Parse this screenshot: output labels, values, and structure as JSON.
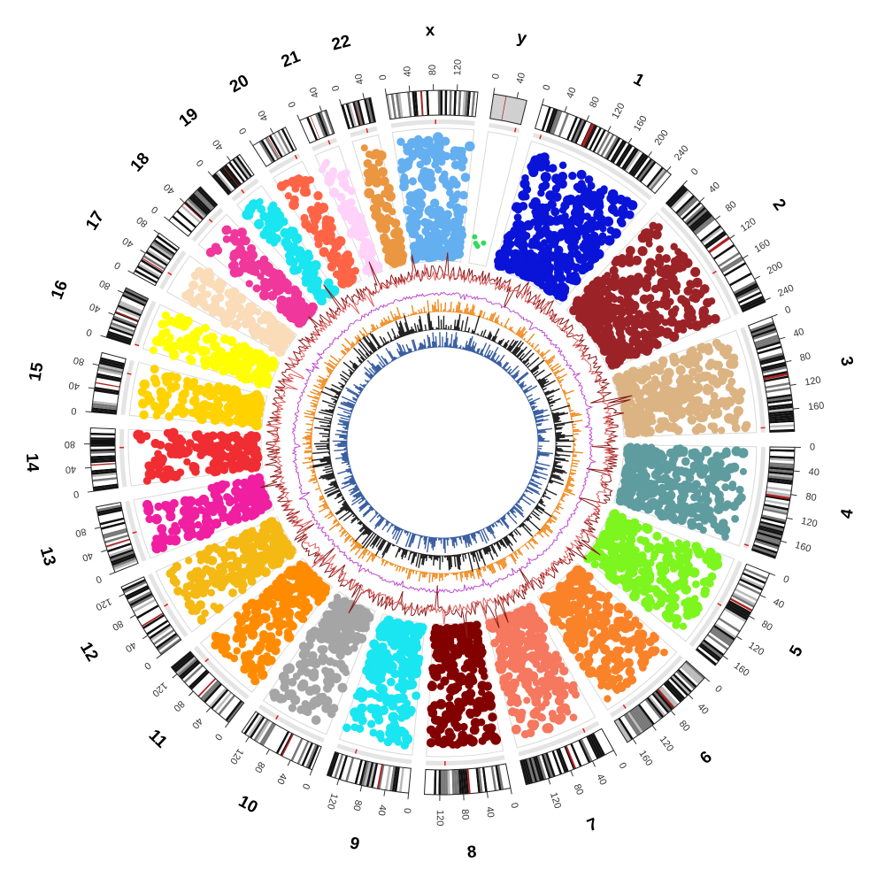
{
  "chart_data": {
    "type": "circos",
    "tracks": [
      "karyotype ideogram",
      "scatter (manhattan-style points)",
      "line track (dark red)",
      "line track (magenta)",
      "histogram (orange)",
      "histogram (black)",
      "histogram (blue)"
    ],
    "chromosomes": [
      {
        "name": "1",
        "length": 249,
        "ticks": [
          0,
          40,
          80,
          120,
          160,
          200,
          240
        ],
        "color": "#0a14d8"
      },
      {
        "name": "2",
        "length": 243,
        "ticks": [
          0,
          40,
          80,
          120,
          160,
          200,
          240
        ],
        "color": "#9b2328"
      },
      {
        "name": "3",
        "length": 198,
        "ticks": [
          0,
          40,
          80,
          120,
          160
        ],
        "color": "#dcb483"
      },
      {
        "name": "4",
        "length": 191,
        "ticks": [
          0,
          40,
          80,
          120,
          160
        ],
        "color": "#5f9c9f"
      },
      {
        "name": "5",
        "length": 181,
        "ticks": [
          0,
          40,
          80,
          120,
          160
        ],
        "color": "#7df51e"
      },
      {
        "name": "6",
        "length": 171,
        "ticks": [
          0,
          40,
          80,
          120,
          160
        ],
        "color": "#fa8228"
      },
      {
        "name": "7",
        "length": 159,
        "ticks": [
          0,
          40,
          80,
          120
        ],
        "color": "#f5785f"
      },
      {
        "name": "8",
        "length": 146,
        "ticks": [
          0,
          40,
          80,
          120
        ],
        "color": "#820000"
      },
      {
        "name": "9",
        "length": 141,
        "ticks": [
          0,
          40,
          80,
          120
        ],
        "color": "#19e6f0"
      },
      {
        "name": "10",
        "length": 135,
        "ticks": [
          0,
          40,
          80,
          120
        ],
        "color": "#a5a5a5"
      },
      {
        "name": "11",
        "length": 135,
        "ticks": [
          0,
          40,
          80,
          120
        ],
        "color": "#ff8c00"
      },
      {
        "name": "12",
        "length": 133,
        "ticks": [
          0,
          40,
          80,
          120
        ],
        "color": "#f5b914"
      },
      {
        "name": "13",
        "length": 115,
        "ticks": [
          0,
          40,
          80
        ],
        "color": "#f01ea0"
      },
      {
        "name": "14",
        "length": 107,
        "ticks": [
          0,
          40,
          80
        ],
        "color": "#f02d32"
      },
      {
        "name": "15",
        "length": 102,
        "ticks": [
          0,
          40,
          80
        ],
        "color": "#ffd200"
      },
      {
        "name": "16",
        "length": 90,
        "ticks": [
          0,
          40,
          80
        ],
        "color": "#ffff00"
      },
      {
        "name": "17",
        "length": 81,
        "ticks": [
          0,
          40,
          80
        ],
        "color": "#fadcb9"
      },
      {
        "name": "18",
        "length": 78,
        "ticks": [
          0,
          40
        ],
        "color": "#f0379b"
      },
      {
        "name": "19",
        "length": 59,
        "ticks": [
          0,
          40
        ],
        "color": "#19e6f0"
      },
      {
        "name": "20",
        "length": 63,
        "ticks": [
          0,
          40
        ],
        "color": "#ff6446"
      },
      {
        "name": "21",
        "length": 48,
        "ticks": [
          0,
          40
        ],
        "color": "#ffd2fa"
      },
      {
        "name": "22",
        "length": 51,
        "ticks": [
          0,
          40
        ],
        "color": "#eb9641"
      },
      {
        "name": "x",
        "length": 155,
        "ticks": [
          0,
          40,
          80,
          120
        ],
        "color": "#64aff0"
      },
      {
        "name": "y",
        "length": 57,
        "ticks": [
          0,
          40
        ],
        "color": "#32dc5a"
      }
    ],
    "track_colors": {
      "line1": "#8b1a1a",
      "line2": "#c04ccf",
      "hist1": "#f08a1e",
      "hist2": "#222222",
      "hist3": "#3a5fa0"
    },
    "grid": false,
    "legend": "none"
  }
}
